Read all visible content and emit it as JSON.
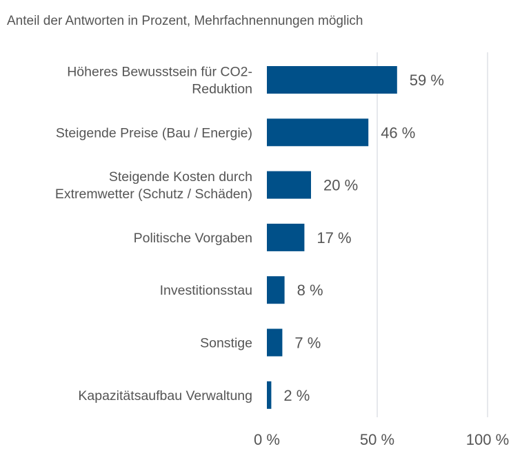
{
  "chart_data": {
    "type": "bar",
    "orientation": "horizontal",
    "subtitle": "Anteil der Antworten in Prozent, Mehrfachnennungen möglich",
    "categories": [
      [
        "Höheres Bewusstsein für CO2-",
        "Reduktion"
      ],
      [
        "Steigende Preise (Bau / Energie)"
      ],
      [
        "Steigende Kosten durch",
        "Extremwetter (Schutz / Schäden)"
      ],
      [
        "Politische Vorgaben"
      ],
      [
        "Investitionsstau"
      ],
      [
        "Sonstige"
      ],
      [
        "Kapazitätsaufbau Verwaltung"
      ]
    ],
    "values": [
      59,
      46,
      20,
      17,
      8,
      7,
      2
    ],
    "value_labels": [
      "59 %",
      "46 %",
      "20 %",
      "17 %",
      "8 %",
      "7 %",
      "2 %"
    ],
    "xlim": [
      0,
      100
    ],
    "xticks": [
      0,
      50,
      100
    ],
    "xtick_labels": [
      "0 %",
      "50 %",
      "100 %"
    ],
    "grid": "vertical",
    "bar_color": "#005089",
    "grid_color": "#dde1e6",
    "label_color": "#555555"
  }
}
